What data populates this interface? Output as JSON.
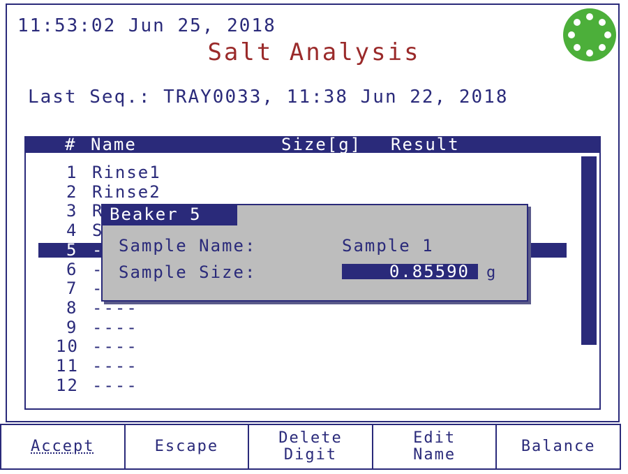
{
  "header": {
    "datetime": "11:53:02 Jun 25, 2018",
    "title": "Salt Analysis",
    "last_seq": "Last Seq.: TRAY0033, 11:38 Jun 22, 2018",
    "status_color": "#4caf3a"
  },
  "table": {
    "col_num": "#",
    "col_name": "Name",
    "col_size": "Size[g]",
    "col_result": "Result",
    "rows": [
      {
        "n": "1",
        "name": "Rinse1"
      },
      {
        "n": "2",
        "name": "Rinse2"
      },
      {
        "n": "3",
        "name": "R"
      },
      {
        "n": "4",
        "name": "S"
      },
      {
        "n": "5",
        "name": "-"
      },
      {
        "n": "6",
        "name": "-"
      },
      {
        "n": "7",
        "name": "-"
      },
      {
        "n": "8",
        "name": "----"
      },
      {
        "n": "9",
        "name": "----"
      },
      {
        "n": "10",
        "name": "----"
      },
      {
        "n": "11",
        "name": "----"
      },
      {
        "n": "12",
        "name": "----"
      }
    ],
    "selected_row": "5"
  },
  "dialog": {
    "title": "Beaker 5",
    "name_label": "Sample Name:",
    "name_value": "Sample 1",
    "size_label": "Sample Size:",
    "size_value": "0.85590",
    "size_unit": "g"
  },
  "buttons": {
    "accept": "Accept",
    "escape": "Escape",
    "delete_digit": "Delete\nDigit",
    "edit_name": "Edit\nName",
    "balance": "Balance"
  }
}
